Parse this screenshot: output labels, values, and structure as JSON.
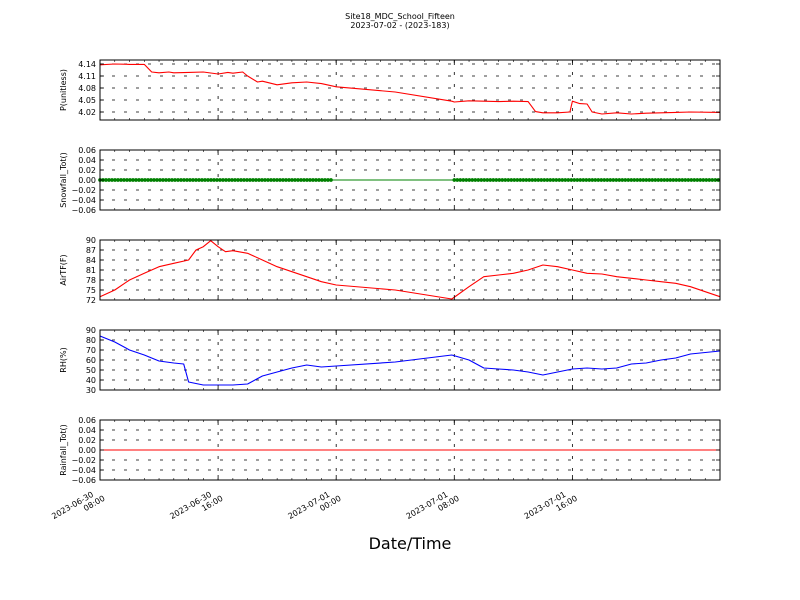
{
  "figure": {
    "title": "Site18_MDC_School_Fifteen",
    "subtitle": "2023-07-02 - (2023-183)",
    "xlabel": "Date/Time"
  },
  "chart_data": {
    "type": "line",
    "x_axis": {
      "range": [
        "2023-06-30 08:00",
        "2023-07-02 02:00"
      ],
      "tick_labels": [
        [
          "2023-06-30",
          "08:00"
        ],
        [
          "2023-06-30",
          "16:00"
        ],
        [
          "2023-07-01",
          "00:00"
        ],
        [
          "2023-07-01",
          "08:00"
        ],
        [
          "2023-07-01",
          "16:00"
        ]
      ],
      "ticks": [
        "2023-06-30 08:00",
        "2023-06-30 16:00",
        "2023-07-01 00:00",
        "2023-07-01 08:00",
        "2023-07-01 16:00"
      ],
      "grid": true
    },
    "panels": [
      {
        "ylabel": "P(unitless)",
        "ylim": [
          4.0,
          4.15
        ],
        "yticks": [
          "4.14",
          "4.11",
          "4.08",
          "4.05",
          "4.02"
        ],
        "ytick_values": [
          4.14,
          4.11,
          4.08,
          4.05,
          4.02
        ],
        "grid": true,
        "series": [
          {
            "color": "#ff0000",
            "marker": false,
            "points": [
              [
                "2023-06-30 08:00",
                4.138
              ],
              [
                "2023-06-30 09:00",
                4.14
              ],
              [
                "2023-06-30 10:00",
                4.139
              ],
              [
                "2023-06-30 11:00",
                4.139
              ],
              [
                "2023-06-30 11:30",
                4.12
              ],
              [
                "2023-06-30 12:00",
                4.118
              ],
              [
                "2023-06-30 12:40",
                4.12
              ],
              [
                "2023-06-30 13:00",
                4.118
              ],
              [
                "2023-06-30 14:00",
                4.119
              ],
              [
                "2023-06-30 15:00",
                4.12
              ],
              [
                "2023-06-30 16:00",
                4.115
              ],
              [
                "2023-06-30 16:40",
                4.119
              ],
              [
                "2023-06-30 17:00",
                4.117
              ],
              [
                "2023-06-30 17:40",
                4.12
              ],
              [
                "2023-06-30 18:00",
                4.11
              ],
              [
                "2023-06-30 18:40",
                4.095
              ],
              [
                "2023-06-30 19:00",
                4.097
              ],
              [
                "2023-06-30 20:00",
                4.088
              ],
              [
                "2023-06-30 21:00",
                4.093
              ],
              [
                "2023-06-30 22:00",
                4.095
              ],
              [
                "2023-06-30 23:00",
                4.091
              ],
              [
                "2023-07-01 00:00",
                4.083
              ],
              [
                "2023-07-01 04:00",
                4.07
              ],
              [
                "2023-07-01 07:50",
                4.047
              ],
              [
                "2023-07-01 08:00",
                4.045
              ],
              [
                "2023-07-01 09:00",
                4.048
              ],
              [
                "2023-07-01 10:00",
                4.047
              ],
              [
                "2023-07-01 11:00",
                4.046
              ],
              [
                "2023-07-01 12:00",
                4.047
              ],
              [
                "2023-07-01 13:00",
                4.046
              ],
              [
                "2023-07-01 13:30",
                4.021
              ],
              [
                "2023-07-01 14:00",
                4.018
              ],
              [
                "2023-07-01 15:00",
                4.018
              ],
              [
                "2023-07-01 15:50",
                4.02
              ],
              [
                "2023-07-01 16:00",
                4.047
              ],
              [
                "2023-07-01 16:30",
                4.041
              ],
              [
                "2023-07-01 17:00",
                4.04
              ],
              [
                "2023-07-01 17:20",
                4.02
              ],
              [
                "2023-07-01 18:00",
                4.015
              ],
              [
                "2023-07-01 19:00",
                4.018
              ],
              [
                "2023-07-01 20:00",
                4.015
              ],
              [
                "2023-07-01 21:00",
                4.017
              ],
              [
                "2023-07-01 22:00",
                4.018
              ],
              [
                "2023-07-01 23:00",
                4.019
              ],
              [
                "2023-07-02 00:00",
                4.02
              ],
              [
                "2023-07-02 02:00",
                4.019
              ]
            ]
          }
        ]
      },
      {
        "ylabel": "Snowfall_Tot()",
        "ylim": [
          -0.06,
          0.06
        ],
        "yticks": [
          "0.06",
          "0.04",
          "0.02",
          "0.00",
          "−0.02",
          "−0.04",
          "−0.06"
        ],
        "ytick_values": [
          0.06,
          0.04,
          0.02,
          0.0,
          -0.02,
          -0.04,
          -0.06
        ],
        "grid": true,
        "series": [
          {
            "color": "#008000",
            "marker": true,
            "points": [
              [
                "2023-06-30 08:00",
                0.0
              ],
              [
                "2023-07-02 02:00",
                0.0
              ]
            ],
            "marker_ranges": [
              [
                "2023-06-30 08:00",
                "2023-06-30 23:50"
              ],
              [
                "2023-07-01 08:00",
                "2023-07-02 02:00"
              ]
            ]
          }
        ]
      },
      {
        "ylabel": "AirTF(F)",
        "ylim": [
          72,
          90
        ],
        "yticks": [
          "90",
          "87",
          "84",
          "81",
          "78",
          "75",
          "72"
        ],
        "ytick_values": [
          90,
          87,
          84,
          81,
          78,
          75,
          72
        ],
        "grid": true,
        "series": [
          {
            "color": "#ff0000",
            "marker": false,
            "points": [
              [
                "2023-06-30 08:00",
                73
              ],
              [
                "2023-06-30 09:00",
                75
              ],
              [
                "2023-06-30 10:00",
                78
              ],
              [
                "2023-06-30 11:00",
                80
              ],
              [
                "2023-06-30 12:00",
                82
              ],
              [
                "2023-06-30 13:00",
                83
              ],
              [
                "2023-06-30 14:00",
                84
              ],
              [
                "2023-06-30 14:30",
                87
              ],
              [
                "2023-06-30 15:00",
                88
              ],
              [
                "2023-06-30 15:30",
                89.8
              ],
              [
                "2023-06-30 16:00",
                88
              ],
              [
                "2023-06-30 16:30",
                86.5
              ],
              [
                "2023-06-30 17:00",
                86.8
              ],
              [
                "2023-06-30 18:00",
                86
              ],
              [
                "2023-06-30 19:00",
                84
              ],
              [
                "2023-06-30 20:00",
                82
              ],
              [
                "2023-06-30 21:00",
                80.5
              ],
              [
                "2023-06-30 22:00",
                79
              ],
              [
                "2023-06-30 23:00",
                77.5
              ],
              [
                "2023-07-01 00:00",
                76.5
              ],
              [
                "2023-07-01 04:00",
                75
              ],
              [
                "2023-07-01 07:50",
                72.3
              ],
              [
                "2023-07-01 09:00",
                76
              ],
              [
                "2023-07-01 10:00",
                79
              ],
              [
                "2023-07-01 11:00",
                79.5
              ],
              [
                "2023-07-01 12:00",
                80
              ],
              [
                "2023-07-01 13:00",
                81
              ],
              [
                "2023-07-01 14:00",
                82.5
              ],
              [
                "2023-07-01 15:00",
                82
              ],
              [
                "2023-07-01 16:00",
                81
              ],
              [
                "2023-07-01 17:00",
                80
              ],
              [
                "2023-07-01 18:00",
                79.8
              ],
              [
                "2023-07-01 19:00",
                79
              ],
              [
                "2023-07-01 20:00",
                78.5
              ],
              [
                "2023-07-01 21:00",
                78
              ],
              [
                "2023-07-01 22:00",
                77.5
              ],
              [
                "2023-07-01 23:00",
                77
              ],
              [
                "2023-07-02 00:00",
                76
              ],
              [
                "2023-07-02 01:00",
                74.5
              ],
              [
                "2023-07-02 02:00",
                73
              ]
            ]
          }
        ]
      },
      {
        "ylabel": "RH(%)",
        "ylim": [
          30,
          90
        ],
        "yticks": [
          "90",
          "80",
          "70",
          "60",
          "50",
          "40",
          "30"
        ],
        "ytick_values": [
          90,
          80,
          70,
          60,
          50,
          40,
          30
        ],
        "grid": true,
        "series": [
          {
            "color": "#0000ff",
            "marker": false,
            "points": [
              [
                "2023-06-30 08:00",
                84
              ],
              [
                "2023-06-30 09:00",
                78
              ],
              [
                "2023-06-30 10:00",
                70
              ],
              [
                "2023-06-30 11:00",
                65
              ],
              [
                "2023-06-30 12:00",
                59
              ],
              [
                "2023-06-30 13:00",
                57
              ],
              [
                "2023-06-30 13:40",
                56
              ],
              [
                "2023-06-30 14:00",
                38
              ],
              [
                "2023-06-30 15:00",
                35
              ],
              [
                "2023-06-30 16:00",
                35
              ],
              [
                "2023-06-30 17:00",
                35
              ],
              [
                "2023-06-30 18:00",
                36
              ],
              [
                "2023-06-30 19:00",
                44
              ],
              [
                "2023-06-30 20:00",
                48
              ],
              [
                "2023-06-30 21:00",
                52
              ],
              [
                "2023-06-30 22:00",
                55
              ],
              [
                "2023-06-30 23:00",
                53
              ],
              [
                "2023-07-01 00:00",
                54
              ],
              [
                "2023-07-01 04:00",
                58
              ],
              [
                "2023-07-01 07:50",
                65
              ],
              [
                "2023-07-01 09:00",
                60
              ],
              [
                "2023-07-01 10:00",
                52
              ],
              [
                "2023-07-01 11:00",
                51
              ],
              [
                "2023-07-01 12:00",
                50
              ],
              [
                "2023-07-01 13:00",
                48
              ],
              [
                "2023-07-01 14:00",
                45
              ],
              [
                "2023-07-01 15:00",
                48
              ],
              [
                "2023-07-01 16:00",
                51
              ],
              [
                "2023-07-01 17:00",
                52
              ],
              [
                "2023-07-01 18:00",
                51
              ],
              [
                "2023-07-01 19:00",
                52
              ],
              [
                "2023-07-01 20:00",
                56
              ],
              [
                "2023-07-01 21:00",
                57
              ],
              [
                "2023-07-01 22:00",
                60
              ],
              [
                "2023-07-01 23:00",
                62
              ],
              [
                "2023-07-02 00:00",
                66
              ],
              [
                "2023-07-02 02:00",
                69
              ]
            ]
          }
        ]
      },
      {
        "ylabel": "Rainfall_Tot()",
        "ylim": [
          -0.06,
          0.06
        ],
        "yticks": [
          "0.06",
          "0.04",
          "0.02",
          "0.00",
          "−0.02",
          "−0.04",
          "−0.06"
        ],
        "ytick_values": [
          0.06,
          0.04,
          0.02,
          0.0,
          -0.02,
          -0.04,
          -0.06
        ],
        "grid": true,
        "series": [
          {
            "color": "#ff0000",
            "marker": false,
            "points": [
              [
                "2023-06-30 08:00",
                0.0
              ],
              [
                "2023-07-02 02:00",
                0.0
              ]
            ]
          }
        ]
      }
    ]
  }
}
